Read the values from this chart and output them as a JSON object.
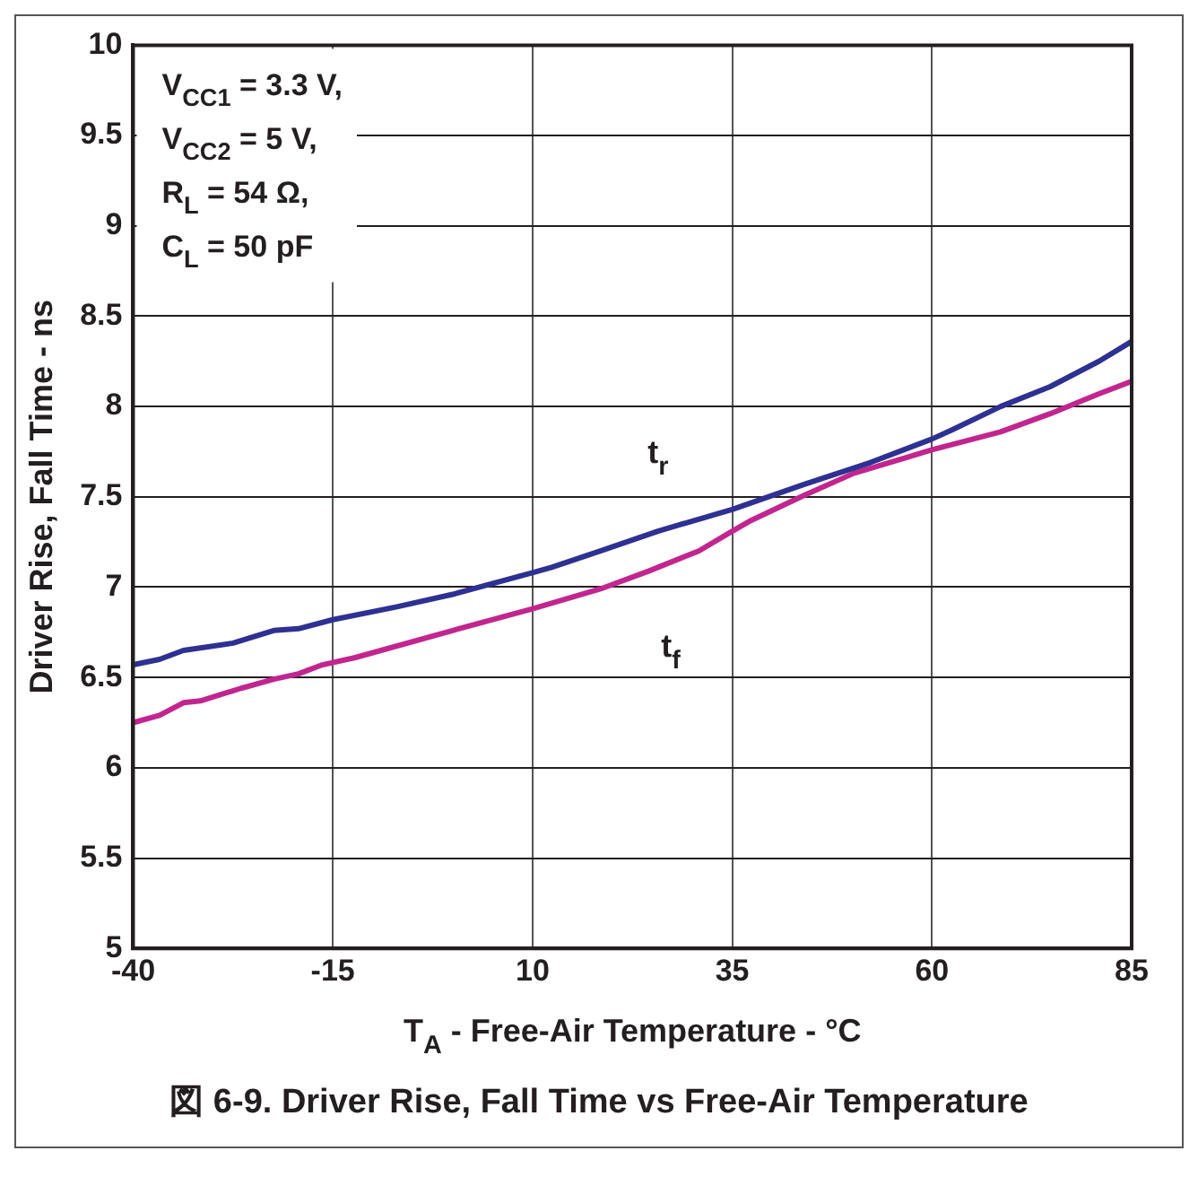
{
  "chart_data": {
    "type": "line",
    "title": "図 6-9. Driver Rise, Fall Time vs Free-Air Temperature",
    "xlabel": "T$_{A}$ - Free-Air Temperature - °C",
    "ylabel": "Driver Rise, Fall Time - ns",
    "annotations": [
      "V$_{CC1}$ = 3.3 V,",
      "V$_{CC2}$ = 5 V,",
      "R$_{L}$ = 54 Ω,",
      "C$_{L}$ = 50 pF"
    ],
    "series": [
      {
        "name": "t$_{r}$",
        "color": "#2e3192",
        "x": [
          -40,
          -36.7,
          -33.7,
          -27.5,
          -22.4,
          -19.3,
          -15,
          -7.1,
          0,
          10,
          12.4,
          18.5,
          25.7,
          35,
          44.1,
          52.3,
          60,
          62.5,
          68.6,
          74.8,
          80.9,
          85
        ],
        "values": [
          6.57,
          6.6,
          6.65,
          6.69,
          6.76,
          6.77,
          6.82,
          6.89,
          6.96,
          7.08,
          7.11,
          7.2,
          7.31,
          7.43,
          7.57,
          7.69,
          7.82,
          7.87,
          8.0,
          8.11,
          8.25,
          8.36
        ]
      },
      {
        "name": "t$_{f}$",
        "color": "#c1268f",
        "x": [
          -40,
          -36.7,
          -33.7,
          -31.6,
          -26.5,
          -22.4,
          -19.3,
          -16.3,
          -12.2,
          0,
          10,
          18.5,
          24.6,
          30.8,
          35,
          37.4,
          44.1,
          50.2,
          60,
          68.6,
          74.8,
          80.9,
          85
        ],
        "values": [
          6.25,
          6.29,
          6.36,
          6.37,
          6.44,
          6.49,
          6.52,
          6.57,
          6.61,
          6.76,
          6.88,
          6.99,
          7.09,
          7.2,
          7.31,
          7.37,
          7.51,
          7.63,
          7.76,
          7.86,
          7.96,
          8.07,
          8.14
        ]
      }
    ],
    "xlim": [
      -40,
      85
    ],
    "xticks": [
      -40,
      -15,
      10,
      35,
      60,
      85
    ],
    "ylim": [
      5,
      10
    ],
    "yticks": [
      5,
      5.5,
      6,
      6.5,
      7,
      7.5,
      8,
      8.5,
      9,
      9.5,
      10
    ],
    "grid": true,
    "legend": false,
    "marker": "none",
    "line_style": "solid"
  }
}
